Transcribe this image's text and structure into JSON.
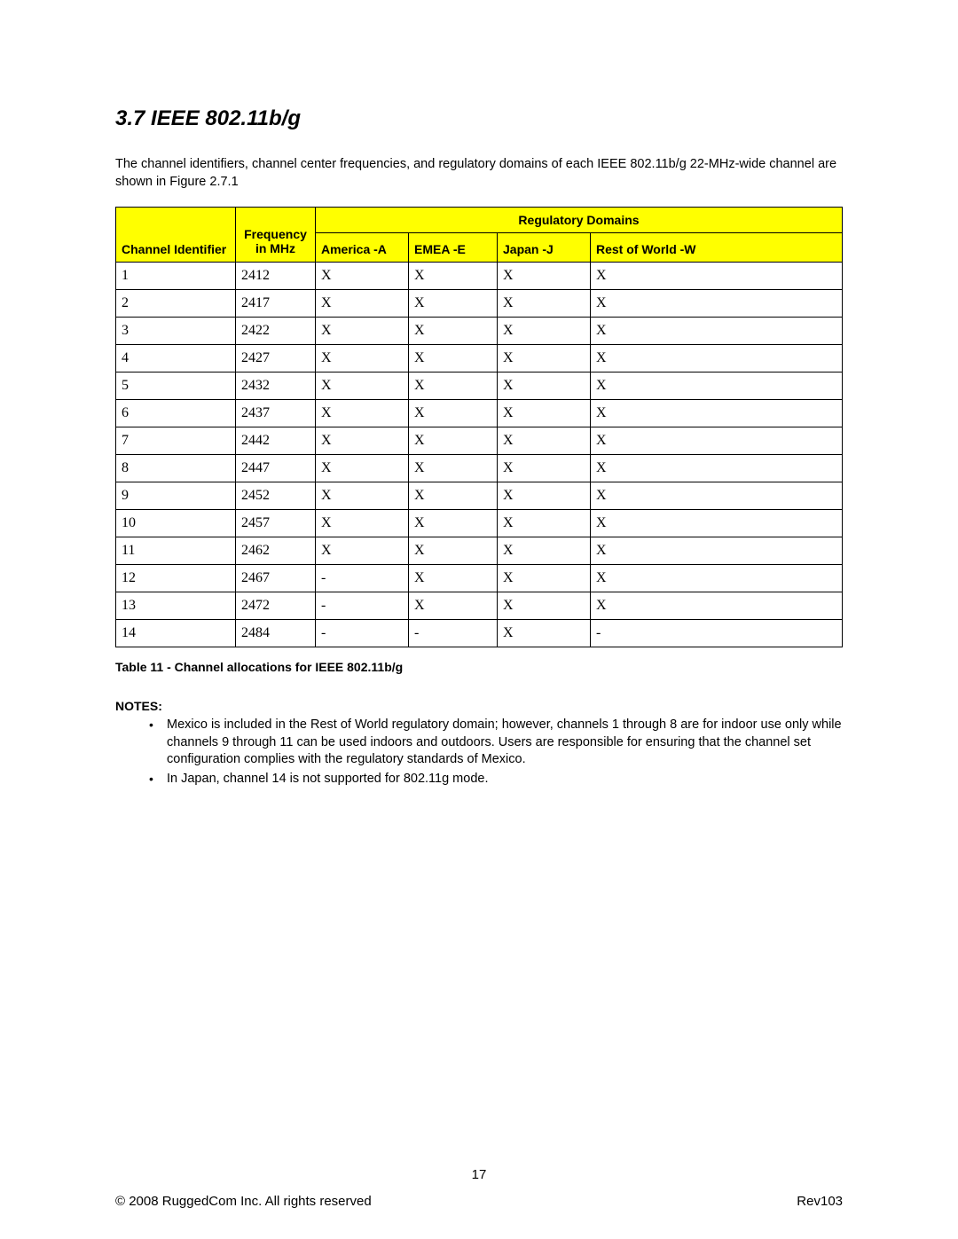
{
  "section": {
    "number": "3.7",
    "title": "IEEE 802.11b/g",
    "heading": "3.7  IEEE 802.11b/g"
  },
  "intro": "The channel identifiers, channel center frequencies, and regulatory domains of each IEEE 802.11b/g 22-MHz-wide channel are shown in Figure 2.7.1",
  "table": {
    "header_bg_color": "#ffff00",
    "border_color": "#000000",
    "columns": {
      "channel_identifier": "Channel Identifier",
      "frequency": "Frequency in MHz",
      "regulatory_domains": "Regulatory Domains",
      "america": "America -A",
      "emea": "EMEA -E",
      "japan": "Japan -J",
      "rest_of_world": "Rest of World -W"
    },
    "rows": [
      {
        "id": "1",
        "freq": "2412",
        "america": "X",
        "emea": "X",
        "japan": "X",
        "rest": "X"
      },
      {
        "id": "2",
        "freq": "2417",
        "america": "X",
        "emea": "X",
        "japan": "X",
        "rest": "X"
      },
      {
        "id": "3",
        "freq": "2422",
        "america": "X",
        "emea": "X",
        "japan": "X",
        "rest": "X"
      },
      {
        "id": "4",
        "freq": "2427",
        "american": "X",
        "america": "X",
        "emea": "X",
        "japan": "X",
        "rest": "X"
      },
      {
        "id": "5",
        "freq": "2432",
        "america": "X",
        "emea": "X",
        "japan": "X",
        "rest": "X"
      },
      {
        "id": "6",
        "freq": "2437",
        "america": "X",
        "emea": "X",
        "japan": "X",
        "rest": "X"
      },
      {
        "id": "7",
        "freq": "2442",
        "america": "X",
        "emea": "X",
        "japan": "X",
        "rest": "X"
      },
      {
        "id": "8",
        "freq": "2447",
        "america": "X",
        "emea": "X",
        "japan": "X",
        "rest": "X"
      },
      {
        "id": "9",
        "freq": "2452",
        "america": "X",
        "emea": "X",
        "japan": "X",
        "rest": "X"
      },
      {
        "id": "10",
        "freq": "2457",
        "america": "X",
        "emea": "X",
        "japan": "X",
        "rest": "X"
      },
      {
        "id": "11",
        "freq": "2462",
        "america": "X",
        "emea": "X",
        "japan": "X",
        "rest": "X"
      },
      {
        "id": "12",
        "freq": "2467",
        "america": "-",
        "emea": "X",
        "japan": "X",
        "rest": "X"
      },
      {
        "id": "13",
        "freq": "2472",
        "america": "-",
        "emea": "X",
        "japan": "X",
        "rest": "X"
      },
      {
        "id": "14",
        "freq": "2484",
        "america": "-",
        "emea": "-",
        "japan": "X",
        "rest": "-"
      }
    ]
  },
  "caption": "Table 11 - Channel allocations for IEEE 802.11b/g",
  "notes": {
    "label": "NOTES:",
    "items": [
      "Mexico is included in the Rest of World regulatory domain; however, channels 1 through 8 are for indoor use only while channels 9 through 11 can be used indoors and outdoors. Users are responsible for ensuring that the channel set configuration complies with the regulatory standards of Mexico.",
      "In Japan, channel 14 is not supported for 802.11g mode."
    ]
  },
  "page_number": "17",
  "footer": {
    "copyright": "© 2008 RuggedCom Inc. All rights reserved",
    "revision": "Rev103"
  },
  "styling": {
    "page_bg": "#ffffff",
    "text_color": "#000000",
    "header_font": "Arial",
    "body_font": "Arial",
    "cell_font": "Times New Roman",
    "heading_fontsize": 24,
    "body_fontsize": 14.5,
    "cell_fontsize": 16
  }
}
